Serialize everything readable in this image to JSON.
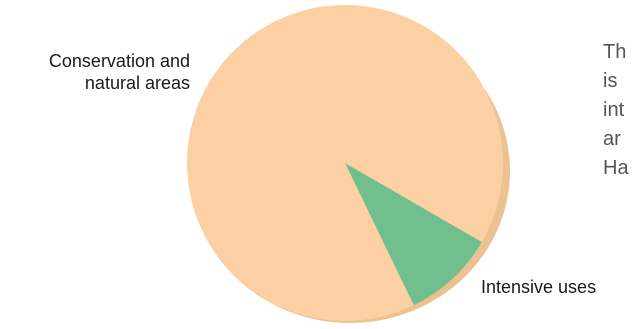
{
  "chart_data": {
    "type": "pie",
    "start_angle_deg": 120,
    "slices": [
      {
        "label_lines": [
          "Conservation and",
          "natural areas"
        ],
        "value": 9.5,
        "color": "#72bf8e"
      },
      {
        "label_lines": [
          "Intensive uses"
        ],
        "value": 90.5,
        "color": "#fcd0a2"
      }
    ],
    "shadow_color": "#ecc293"
  },
  "side_text": {
    "lines": [
      "Th",
      "is",
      "int",
      "ar",
      "Ha"
    ]
  }
}
